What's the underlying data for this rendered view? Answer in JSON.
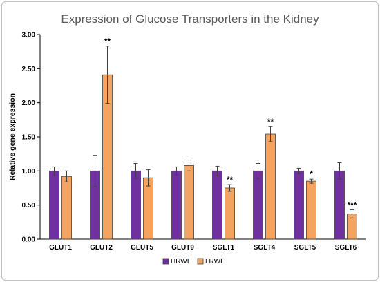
{
  "chart_data": {
    "type": "bar",
    "title": "Expression of Glucose Transporters in the Kidney",
    "ylabel": "Relative gene expression",
    "xlabel": "",
    "ylim": [
      0,
      3.0
    ],
    "yticks": [
      "0.00",
      "0.50",
      "1.00",
      "1.50",
      "2.00",
      "2.50",
      "3.00"
    ],
    "grid": false,
    "legend_position": "bottom",
    "categories": [
      "GLUT1",
      "GLUT2",
      "GLUT5",
      "GLUT9",
      "SGLT1",
      "SGLT4",
      "SGLT5",
      "SGLT6"
    ],
    "series": [
      {
        "name": "HRWI",
        "color": "#7030a0",
        "values": [
          1.0,
          1.0,
          1.0,
          1.0,
          1.0,
          1.0,
          1.0,
          1.0
        ],
        "errors": [
          0.06,
          0.23,
          0.11,
          0.06,
          0.07,
          0.11,
          0.04,
          0.12
        ]
      },
      {
        "name": "LRWI",
        "color": "#f4a460",
        "values": [
          0.92,
          2.41,
          0.9,
          1.08,
          0.75,
          1.54,
          0.85,
          0.37
        ],
        "errors": [
          0.08,
          0.42,
          0.12,
          0.08,
          0.05,
          0.11,
          0.03,
          0.06
        ]
      }
    ],
    "significance": [
      "",
      "**",
      "",
      "",
      "**",
      "**",
      "*",
      "***"
    ]
  }
}
